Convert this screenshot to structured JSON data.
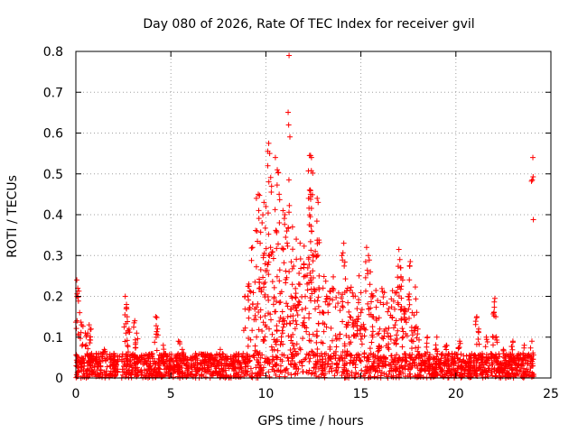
{
  "chart_data": {
    "type": "scatter",
    "title": "Day 080 of 2026, Rate Of TEC Index for receiver gvil",
    "xlabel": "GPS time / hours",
    "ylabel": "ROTI / TECUs",
    "xlim": [
      0,
      25
    ],
    "ylim": [
      0,
      0.8
    ],
    "xticks": [
      "0",
      "5",
      "10",
      "15",
      "20",
      "25"
    ],
    "yticks": [
      "0",
      "0.1",
      "0.2",
      "0.3",
      "0.4",
      "0.5",
      "0.6",
      "0.7",
      "0.8"
    ],
    "grid": true,
    "marker": "+",
    "series": [
      {
        "name": "ROTI",
        "color": "#ff0000",
        "baseline_range": [
          0.0,
          0.06
        ],
        "points": [
          [
            0.05,
            0.24
          ],
          [
            0.1,
            0.22
          ],
          [
            0.2,
            0.16
          ],
          [
            0.3,
            0.13
          ],
          [
            0.5,
            0.11
          ],
          [
            0.7,
            0.13
          ],
          [
            0.8,
            0.12
          ],
          [
            1.2,
            0.06
          ],
          [
            1.5,
            0.07
          ],
          [
            2.0,
            0.06
          ],
          [
            2.6,
            0.2
          ],
          [
            2.65,
            0.17
          ],
          [
            2.7,
            0.15
          ],
          [
            2.8,
            0.12
          ],
          [
            3.1,
            0.14
          ],
          [
            3.2,
            0.11
          ],
          [
            4.2,
            0.15
          ],
          [
            4.3,
            0.12
          ],
          [
            4.6,
            0.08
          ],
          [
            5.4,
            0.09
          ],
          [
            5.6,
            0.07
          ],
          [
            6.3,
            0.06
          ],
          [
            7.6,
            0.07
          ],
          [
            8.9,
            0.2
          ],
          [
            9.1,
            0.23
          ],
          [
            9.3,
            0.32
          ],
          [
            9.5,
            0.44
          ],
          [
            9.6,
            0.45
          ],
          [
            9.7,
            0.33
          ],
          [
            9.8,
            0.38
          ],
          [
            9.9,
            0.43
          ],
          [
            10.0,
            0.42
          ],
          [
            10.1,
            0.52
          ],
          [
            10.15,
            0.575
          ],
          [
            10.2,
            0.55
          ],
          [
            10.3,
            0.47
          ],
          [
            10.5,
            0.54
          ],
          [
            10.6,
            0.51
          ],
          [
            10.7,
            0.45
          ],
          [
            10.9,
            0.41
          ],
          [
            11.0,
            0.4
          ],
          [
            11.1,
            0.36
          ],
          [
            11.2,
            0.62
          ],
          [
            11.22,
            0.79
          ],
          [
            11.4,
            0.37
          ],
          [
            11.6,
            0.34
          ],
          [
            11.8,
            0.33
          ],
          [
            12.0,
            0.28
          ],
          [
            12.3,
            0.545
          ],
          [
            12.35,
            0.545
          ],
          [
            12.4,
            0.54
          ],
          [
            12.3,
            0.46
          ],
          [
            12.35,
            0.45
          ],
          [
            12.4,
            0.36
          ],
          [
            12.5,
            0.3
          ],
          [
            12.6,
            0.31
          ],
          [
            12.7,
            0.44
          ],
          [
            12.75,
            0.43
          ],
          [
            12.8,
            0.25
          ],
          [
            13.2,
            0.2
          ],
          [
            13.5,
            0.22
          ],
          [
            14.0,
            0.3
          ],
          [
            14.1,
            0.33
          ],
          [
            14.3,
            0.22
          ],
          [
            14.6,
            0.2
          ],
          [
            14.8,
            0.17
          ],
          [
            15.0,
            0.16
          ],
          [
            15.3,
            0.32
          ],
          [
            15.4,
            0.3
          ],
          [
            15.5,
            0.26
          ],
          [
            15.6,
            0.15
          ],
          [
            16.0,
            0.12
          ],
          [
            16.4,
            0.11
          ],
          [
            16.8,
            0.13
          ],
          [
            17.0,
            0.315
          ],
          [
            17.05,
            0.29
          ],
          [
            17.1,
            0.27
          ],
          [
            17.2,
            0.24
          ],
          [
            17.3,
            0.17
          ],
          [
            17.5,
            0.2
          ],
          [
            17.6,
            0.285
          ],
          [
            17.7,
            0.16
          ],
          [
            18.0,
            0.12
          ],
          [
            18.5,
            0.1
          ],
          [
            19.0,
            0.1
          ],
          [
            19.5,
            0.08
          ],
          [
            20.2,
            0.09
          ],
          [
            21.1,
            0.15
          ],
          [
            21.2,
            0.12
          ],
          [
            21.6,
            0.1
          ],
          [
            22.0,
            0.16
          ],
          [
            22.05,
            0.195
          ],
          [
            22.1,
            0.15
          ],
          [
            22.5,
            0.07
          ],
          [
            23.0,
            0.09
          ],
          [
            23.6,
            0.08
          ],
          [
            24.0,
            0.09
          ],
          [
            24.05,
            0.54
          ]
        ]
      }
    ]
  }
}
